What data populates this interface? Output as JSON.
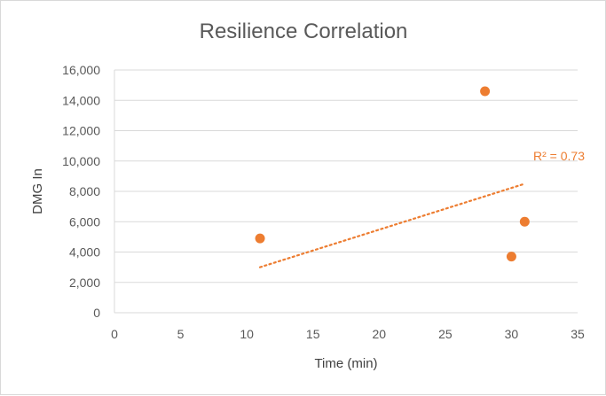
{
  "chart_data": {
    "type": "scatter",
    "title": "Resilience Correlation",
    "xlabel": "Time (min)",
    "ylabel": "DMG In",
    "xlim": [
      0,
      35
    ],
    "ylim": [
      0,
      16000
    ],
    "x_ticks": [
      "0",
      "5",
      "10",
      "15",
      "20",
      "25",
      "30",
      "35"
    ],
    "y_ticks": [
      "0",
      "2,000",
      "4,000",
      "6,000",
      "8,000",
      "10,000",
      "12,000",
      "14,000",
      "16,000"
    ],
    "grid": true,
    "points": [
      {
        "x": 11,
        "y": 4900
      },
      {
        "x": 28,
        "y": 14600
      },
      {
        "x": 30,
        "y": 3700
      },
      {
        "x": 31,
        "y": 6000
      }
    ],
    "trendline": {
      "type": "linear",
      "style": "dotted",
      "from": {
        "x": 11,
        "y": 3000
      },
      "to": {
        "x": 31,
        "y": 8500
      },
      "r2_label": "R² = 0.73"
    },
    "colors": {
      "marker": "#ED7D31",
      "gridline": "#D9D9D9",
      "text": "#595959"
    }
  }
}
